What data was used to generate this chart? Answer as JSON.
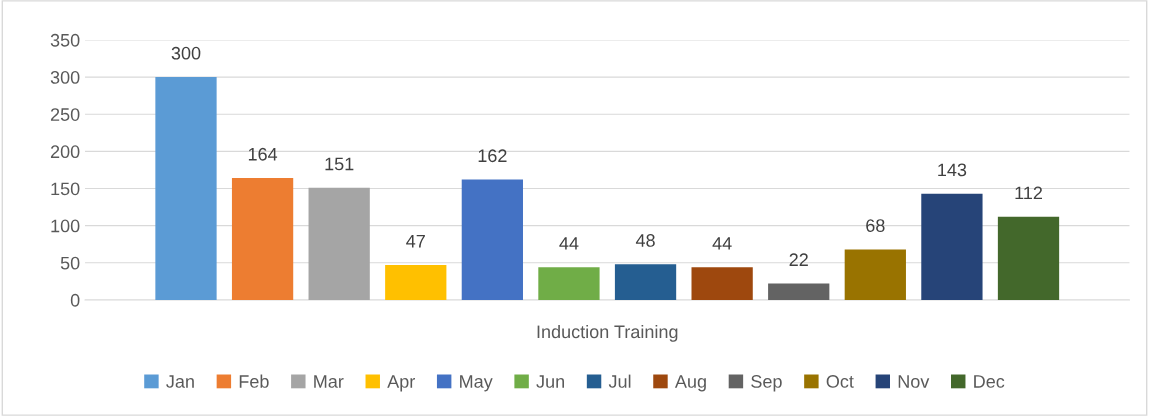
{
  "chart_data": {
    "type": "bar",
    "categories": [
      "Induction Training"
    ],
    "series": [
      {
        "name": "Jan",
        "color": "#5b9bd5",
        "values": [
          300
        ]
      },
      {
        "name": "Feb",
        "color": "#ed7d31",
        "values": [
          164
        ]
      },
      {
        "name": "Mar",
        "color": "#a5a5a5",
        "values": [
          151
        ]
      },
      {
        "name": "Apr",
        "color": "#ffc000",
        "values": [
          47
        ]
      },
      {
        "name": "May",
        "color": "#4472c4",
        "values": [
          162
        ]
      },
      {
        "name": "Jun",
        "color": "#70ad47",
        "values": [
          44
        ]
      },
      {
        "name": "Jul",
        "color": "#255e91",
        "values": [
          48
        ]
      },
      {
        "name": "Aug",
        "color": "#9e480e",
        "values": [
          44
        ]
      },
      {
        "name": "Sep",
        "color": "#636363",
        "values": [
          22
        ]
      },
      {
        "name": "Oct",
        "color": "#997300",
        "values": [
          68
        ]
      },
      {
        "name": "Nov",
        "color": "#264478",
        "values": [
          143
        ]
      },
      {
        "name": "Dec",
        "color": "#43682b",
        "values": [
          112
        ]
      }
    ],
    "ylim": [
      0,
      350
    ],
    "yticks": [
      0,
      50,
      100,
      150,
      200,
      250,
      300,
      350
    ],
    "grid": "y",
    "legend": "bottom",
    "data_labels": true
  }
}
